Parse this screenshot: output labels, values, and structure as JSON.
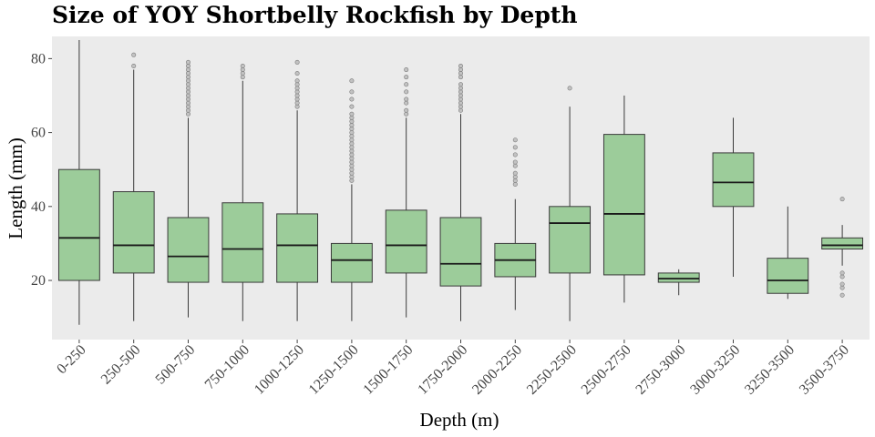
{
  "chart_data": {
    "type": "boxplot",
    "title": "Size of YOY Shortbelly Rockfish by Depth",
    "xlabel": "Depth (m)",
    "ylabel": "Length (mm)",
    "ylim": [
      4,
      86
    ],
    "yticks": [
      20,
      40,
      60,
      80
    ],
    "grid": false,
    "legend": "none",
    "colors": {
      "panel": "#ebebeb",
      "box_fill": "#9ccc9a",
      "box_stroke": "#3a3a3a",
      "outlier": "#7a7a7a"
    },
    "categories": [
      "0-250",
      "250-500",
      "500-750",
      "750-1000",
      "1000-1250",
      "1250-1500",
      "1500-1750",
      "1750-2000",
      "2000-2250",
      "2250-2500",
      "2500-2750",
      "2750-3000",
      "3000-3250",
      "3250-3500",
      "3500-3750"
    ],
    "boxes": [
      {
        "min": 8,
        "q1": 20,
        "median": 31.5,
        "q3": 50,
        "max": 85,
        "outliers": []
      },
      {
        "min": 9,
        "q1": 22,
        "median": 29.5,
        "q3": 44,
        "max": 77,
        "outliers": [
          78,
          81
        ]
      },
      {
        "min": 10,
        "q1": 19.5,
        "median": 26.5,
        "q3": 37,
        "max": 64,
        "outliers": [
          65,
          66,
          67,
          68,
          69,
          70,
          71,
          72,
          73,
          74,
          75,
          76,
          77,
          78,
          79
        ]
      },
      {
        "min": 9,
        "q1": 19.5,
        "median": 28.5,
        "q3": 41,
        "max": 74,
        "outliers": [
          75,
          76,
          77,
          78
        ]
      },
      {
        "min": 9,
        "q1": 19.5,
        "median": 29.5,
        "q3": 38,
        "max": 66,
        "outliers": [
          67,
          68,
          69,
          70,
          71,
          72,
          73,
          74,
          76,
          79
        ]
      },
      {
        "min": 9,
        "q1": 19.5,
        "median": 25.5,
        "q3": 30,
        "max": 46,
        "outliers": [
          47,
          48,
          49,
          50,
          51,
          52,
          53,
          54,
          55,
          56,
          57,
          58,
          59,
          60,
          61,
          62,
          63,
          64,
          65,
          67,
          69,
          71,
          74
        ]
      },
      {
        "min": 10,
        "q1": 22,
        "median": 29.5,
        "q3": 39,
        "max": 64,
        "outliers": [
          65,
          66,
          68,
          69,
          71,
          73,
          75,
          77
        ]
      },
      {
        "min": 9,
        "q1": 18.5,
        "median": 24.5,
        "q3": 37,
        "max": 65,
        "outliers": [
          66,
          67,
          68,
          69,
          70,
          71,
          72,
          73,
          75,
          76,
          77,
          78
        ]
      },
      {
        "min": 12,
        "q1": 21,
        "median": 25.5,
        "q3": 30,
        "max": 42,
        "outliers": [
          46,
          47,
          48,
          49,
          51,
          52,
          54,
          56,
          58
        ]
      },
      {
        "min": 9,
        "q1": 22,
        "median": 35.5,
        "q3": 40,
        "max": 67,
        "outliers": [
          72
        ]
      },
      {
        "min": 14,
        "q1": 21.5,
        "median": 38,
        "q3": 59.5,
        "max": 70,
        "outliers": []
      },
      {
        "min": 16,
        "q1": 19.5,
        "median": 20.5,
        "q3": 22,
        "max": 23,
        "outliers": []
      },
      {
        "min": 21,
        "q1": 40,
        "median": 46.5,
        "q3": 54.5,
        "max": 64,
        "outliers": []
      },
      {
        "min": 15,
        "q1": 16.5,
        "median": 20,
        "q3": 26,
        "max": 40,
        "outliers": []
      },
      {
        "min": 24,
        "q1": 28.5,
        "median": 29.5,
        "q3": 31.5,
        "max": 35,
        "outliers": [
          16,
          18,
          19,
          21,
          22,
          42
        ]
      }
    ]
  }
}
